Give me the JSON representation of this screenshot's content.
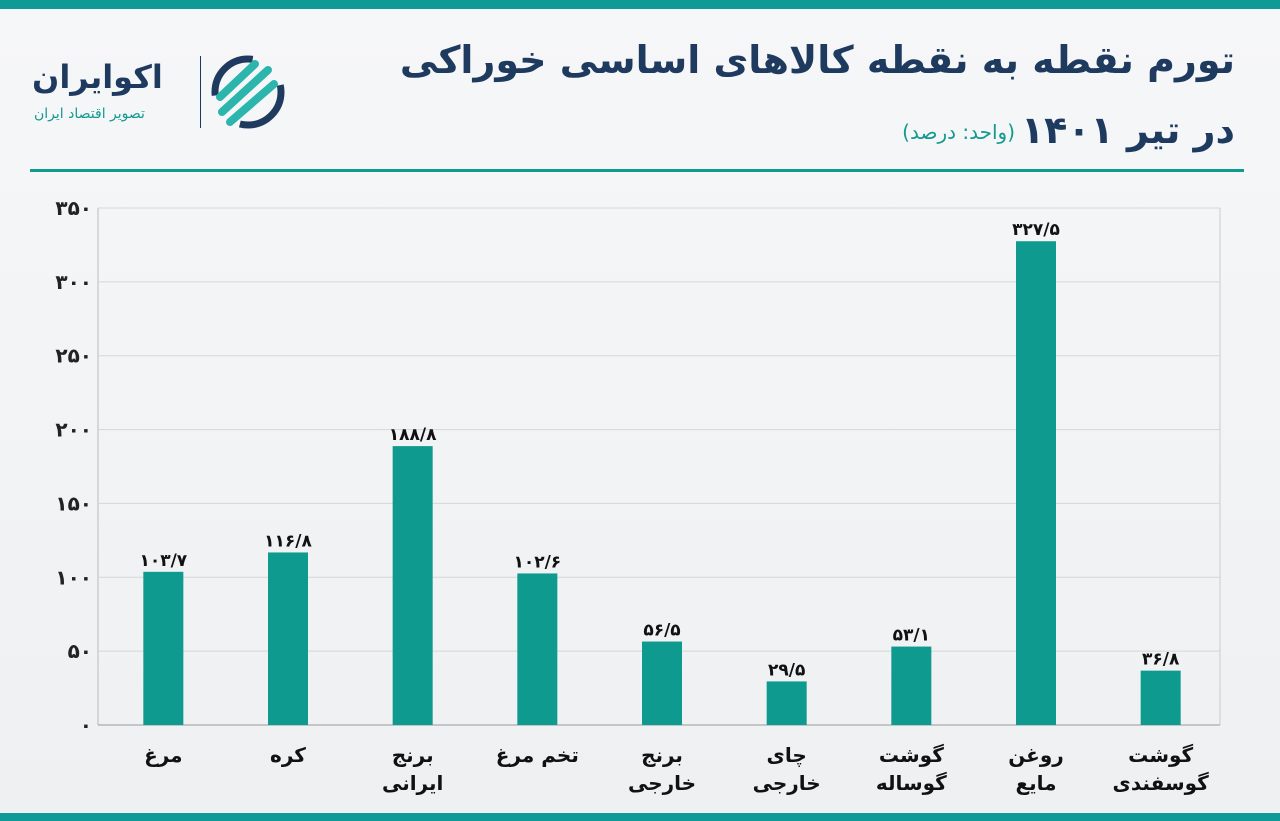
{
  "header": {
    "title_line1": "تورم نقطه به نقطه کالاهای اساسی خوراکی",
    "title_line2": "در تیر ۱۴۰۱",
    "unit": "(واحد: درصد)"
  },
  "logo": {
    "name": "اکوایران",
    "tagline": "تصویر اقتصاد ایران"
  },
  "colors": {
    "bar": "#0e9a8f",
    "accent": "#139a8f",
    "title": "#1f3a5f"
  },
  "chart_data": {
    "type": "bar",
    "title": "تورم نقطه به نقطه کالاهای اساسی خوراکی در تیر ۱۴۰۱",
    "ylabel": "(واحد: درصد)",
    "xlabel": "",
    "ylim": [
      0,
      350
    ],
    "yticks": [
      0,
      50,
      100,
      150,
      200,
      250,
      300,
      350
    ],
    "ytick_labels": [
      "۰",
      "۵۰",
      "۱۰۰",
      "۱۵۰",
      "۲۰۰",
      "۲۵۰",
      "۳۰۰",
      "۳۵۰"
    ],
    "grid": true,
    "categories": [
      [
        "مرغ"
      ],
      [
        "کره"
      ],
      [
        "برنج",
        "ایرانی"
      ],
      [
        "تخم مرغ"
      ],
      [
        "برنج",
        "خارجی"
      ],
      [
        "چای",
        "خارجی"
      ],
      [
        "گوشت",
        "گوساله"
      ],
      [
        "روغن",
        "مایع"
      ],
      [
        "گوشت",
        "گوسفندی"
      ]
    ],
    "values": [
      103.7,
      116.8,
      188.8,
      102.6,
      56.5,
      29.5,
      53.1,
      327.5,
      36.8
    ],
    "value_labels": [
      "۱۰۳/۷",
      "۱۱۶/۸",
      "۱۸۸/۸",
      "۱۰۲/۶",
      "۵۶/۵",
      "۲۹/۵",
      "۵۳/۱",
      "۳۲۷/۵",
      "۳۶/۸"
    ]
  }
}
